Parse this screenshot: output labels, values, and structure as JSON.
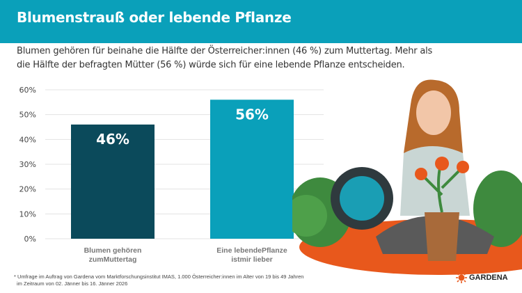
{
  "header": {
    "title": "Blumenstrauß oder lebende Pflanze"
  },
  "subtitle": "Blumen gehören für beinahe die Hälfte der Österreicher:innen (46 %) zum Muttertag. Mehr als die Hälfte der befragten Mütter (56 %) würde sich für eine lebende Pflanze entscheiden.",
  "chart_data": {
    "type": "bar",
    "categories": [
      "Blumen gehören zumMuttertag",
      "Eine lebendePflanze istmir lieber"
    ],
    "category_lines": [
      [
        "Blumen gehören",
        "zumMuttertag"
      ],
      [
        "Eine lebendePflanze",
        "istmir lieber"
      ]
    ],
    "values": [
      46,
      56
    ],
    "data_labels": [
      "46%",
      "56%"
    ],
    "colors": [
      "#0b4a5b",
      "#0aa0ba"
    ],
    "yticks": [
      "0%",
      "10%",
      "20%",
      "30%",
      "40%",
      "50%",
      "60%"
    ],
    "ylim": [
      0,
      60
    ],
    "grid": true
  },
  "footnote": [
    "* Umfrage im Auftrag von Gardena vom Marktforschungsinstitut IMAS, 1.000 Österreicher:innen im Alter von 19 bis 49 Jahren",
    "im Zeitraum von 02. Jänner bis 16. Jänner 2026"
  ],
  "logo": {
    "text": "GARDENA",
    "color": "#e8581c"
  }
}
